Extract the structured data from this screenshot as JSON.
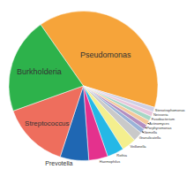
{
  "chart_data": {
    "type": "pie",
    "categories": [
      "Pseudomonas",
      "Stenotrophomonas",
      "Neisseria",
      "Fusobacterium",
      "Actinomyces",
      "Porphyromonas",
      "Gemella",
      "Granulicatella",
      "Veillonella",
      "Rothia",
      "Haemophilus",
      "Prevotella",
      "Streptococcus",
      "Burkholderia"
    ],
    "values": [
      38,
      1,
      1,
      1,
      1,
      1,
      1,
      2,
      3,
      3.5,
      4,
      6,
      14,
      20
    ],
    "colors": [
      "#f6a43a",
      "#cfd0e6",
      "#e9c6dc",
      "#a7d7c5",
      "#f5c99b",
      "#b38ec0",
      "#9ab3d8",
      "#c9c9c9",
      "#f4ef8e",
      "#25b8e6",
      "#e4318d",
      "#1f67b3",
      "#ee6e5d",
      "#2db24b"
    ]
  }
}
